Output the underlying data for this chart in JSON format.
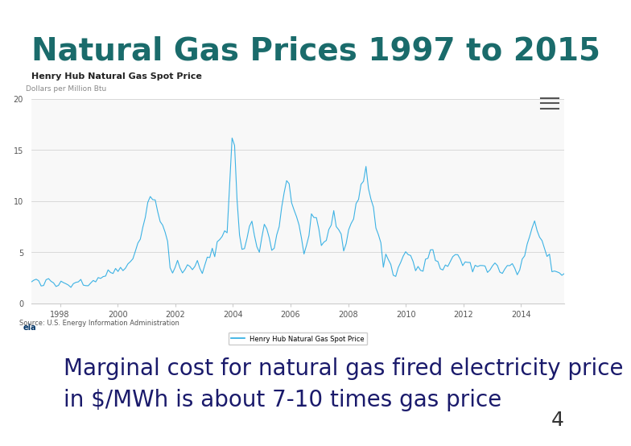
{
  "title": "Natural Gas Prices 1997 to 2015",
  "title_color": "#1a6b6b",
  "title_fontsize": 28,
  "slide_bg": "#ffffff",
  "divider_color": "#1a1a6b",
  "chart_title": "Henry Hub Natural Gas Spot Price",
  "chart_subtitle": "Dollars per Million Btu",
  "chart_bg": "#ffffff",
  "chart_border": "#cccccc",
  "line_color": "#29abe2",
  "legend_label": "Henry Hub Natural Gas Spot Price",
  "ylim": [
    0,
    20
  ],
  "yticks": [
    0,
    5,
    10,
    15,
    20
  ],
  "ylabel_color": "#888888",
  "xtick_labels": [
    "1998",
    "2000",
    "2002",
    "2004",
    "2006",
    "2008",
    "2010",
    "2012",
    "2014"
  ],
  "annotation_text": "Marginal cost for natural gas fired electricity price\nin $/MWh is about 7-10 times gas price",
  "annotation_color": "#1a1a6b",
  "annotation_fontsize": 20,
  "page_number": "4",
  "source_text": "Source: U.S. Energy Information Administration"
}
